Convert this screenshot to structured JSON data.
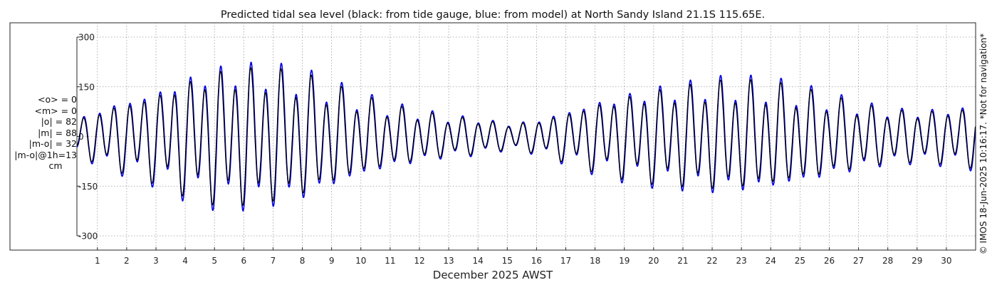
{
  "chart_data": {
    "type": "line",
    "title": "Predicted tidal sea level (black: from tide gauge, blue: from model) at North Sandy Island 21.1S 115.65E.",
    "xlabel": "December 2025 AWST",
    "ylabel": "",
    "ylim": [
      -320,
      320
    ],
    "yticks": [
      300,
      150,
      0,
      -150,
      -300
    ],
    "ytick_labels": [
      "300",
      "150",
      "0",
      "-150",
      "-300"
    ],
    "xlim": [
      0.3,
      31.0
    ],
    "xticks": [
      1,
      2,
      3,
      4,
      5,
      6,
      7,
      8,
      9,
      10,
      11,
      12,
      13,
      14,
      15,
      16,
      17,
      18,
      19,
      20,
      21,
      22,
      23,
      24,
      25,
      26,
      27,
      28,
      29,
      30
    ],
    "xtick_labels": [
      "1",
      "2",
      "3",
      "4",
      "5",
      "6",
      "7",
      "8",
      "9",
      "10",
      "11",
      "12",
      "13",
      "14",
      "15",
      "16",
      "17",
      "18",
      "19",
      "20",
      "21",
      "22",
      "23",
      "24",
      "25",
      "26",
      "27",
      "28",
      "29",
      "30"
    ],
    "grid": true,
    "units": "cm",
    "series": [
      {
        "name": "tide gauge",
        "color": "#000000",
        "model": {
          "semidiurnal_period_days": 0.5175,
          "diurnal_period_days": 1.0,
          "start_day": 0.3,
          "end_day": 31.0,
          "amplitude_envelope": [
            [
              0.3,
              45
            ],
            [
              1,
              75
            ],
            [
              2,
              100
            ],
            [
              3,
              125
            ],
            [
              4,
              160
            ],
            [
              5,
              185
            ],
            [
              6,
              190
            ],
            [
              7,
              185
            ],
            [
              8,
              170
            ],
            [
              9,
              140
            ],
            [
              10,
              110
            ],
            [
              11,
              85
            ],
            [
              12,
              70
            ],
            [
              13,
              55
            ],
            [
              14,
              50
            ],
            [
              15,
              35
            ],
            [
              16,
              45
            ],
            [
              17,
              70
            ],
            [
              18,
              95
            ],
            [
              19,
              115
            ],
            [
              20,
              130
            ],
            [
              21,
              140
            ],
            [
              22,
              150
            ],
            [
              23,
              150
            ],
            [
              24,
              145
            ],
            [
              25,
              130
            ],
            [
              26,
              110
            ],
            [
              27,
              90
            ],
            [
              28,
              75
            ],
            [
              29,
              70
            ],
            [
              30,
              75
            ],
            [
              31,
              85
            ]
          ]
        }
      },
      {
        "name": "model",
        "color": "#0000dd",
        "model": {
          "semidiurnal_period_days": 0.5175,
          "diurnal_period_days": 1.0,
          "start_day": 0.3,
          "end_day": 31.0,
          "amplitude_scale": 1.08,
          "phase_lag_days": 0.012
        }
      }
    ]
  },
  "stats": {
    "mean_obs": "<o> = 0",
    "mean_model": "<m> = 0",
    "abs_obs": "|o| = 82",
    "abs_model": "|m| = 88",
    "abs_diff": "|m-o| = 32",
    "abs_diff_1h": "|m-o|@1h=13",
    "unit": "cm"
  },
  "credit": "© IMOS 18-Jun-2025 10:16:17. *Not for navigation*",
  "colors": {
    "gauge": "#000000",
    "model": "#0000dd",
    "grid": "#9a9a9a",
    "axis": "#262626"
  }
}
